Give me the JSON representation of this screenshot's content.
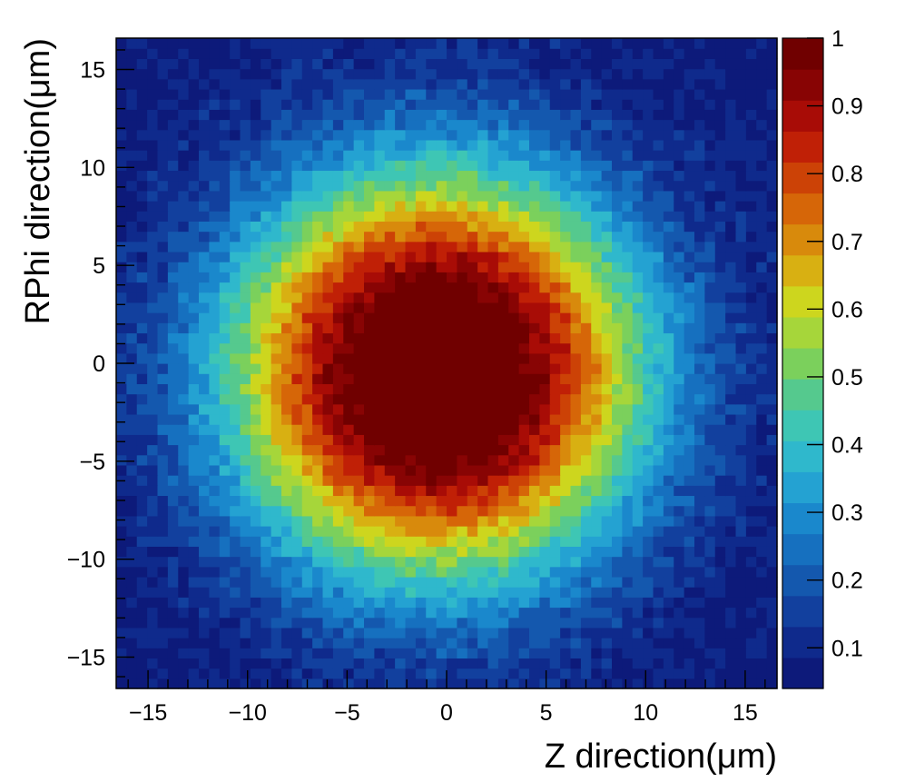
{
  "chart_data": {
    "type": "heatmap",
    "title": "",
    "xlabel": "Z direction(μm)",
    "ylabel": "RPhi direction(μm)",
    "xlim": [
      -16.6,
      16.6
    ],
    "ylim": [
      -16.6,
      16.6
    ],
    "x_ticks": [
      -15,
      -10,
      -5,
      0,
      5,
      10,
      15
    ],
    "x_tick_labels": [
      "−15",
      "−10",
      "−5",
      "0",
      "5",
      "10",
      "15"
    ],
    "y_ticks": [
      -15,
      -10,
      -5,
      0,
      5,
      10,
      15
    ],
    "y_tick_labels": [
      "−15",
      "−10",
      "−5",
      "0",
      "5",
      "10",
      "15"
    ],
    "colorbar": {
      "min": 0.04,
      "max": 1.0,
      "ticks": [
        0.1,
        0.2,
        0.3,
        0.4,
        0.5,
        0.6,
        0.7,
        0.8,
        0.9,
        1.0
      ],
      "tick_labels": [
        "0.1",
        "0.2",
        "0.3",
        "0.4",
        "0.5",
        "0.6",
        "0.7",
        "0.8",
        "0.9",
        "1"
      ]
    },
    "bins": {
      "nx": 64,
      "ny": 64
    },
    "distribution": {
      "shape": "2D Gaussian",
      "center_x": -0.5,
      "center_y": -0.5,
      "sigma_x": 5.8,
      "sigma_y": 5.8,
      "peak_value": 1.0,
      "plateau_radius": 2.5
    },
    "colors": [
      "#0d1a7a",
      "#0f2a8c",
      "#12409e",
      "#1458ae",
      "#1670bf",
      "#1a88cc",
      "#24a2d2",
      "#2fb8cc",
      "#3ec6b4",
      "#55c98e",
      "#7bd05c",
      "#a6d63a",
      "#cdd61e",
      "#d8b012",
      "#d88a0c",
      "#d66608",
      "#cc4206",
      "#c02006",
      "#a80c06",
      "#880404",
      "#700000"
    ]
  }
}
